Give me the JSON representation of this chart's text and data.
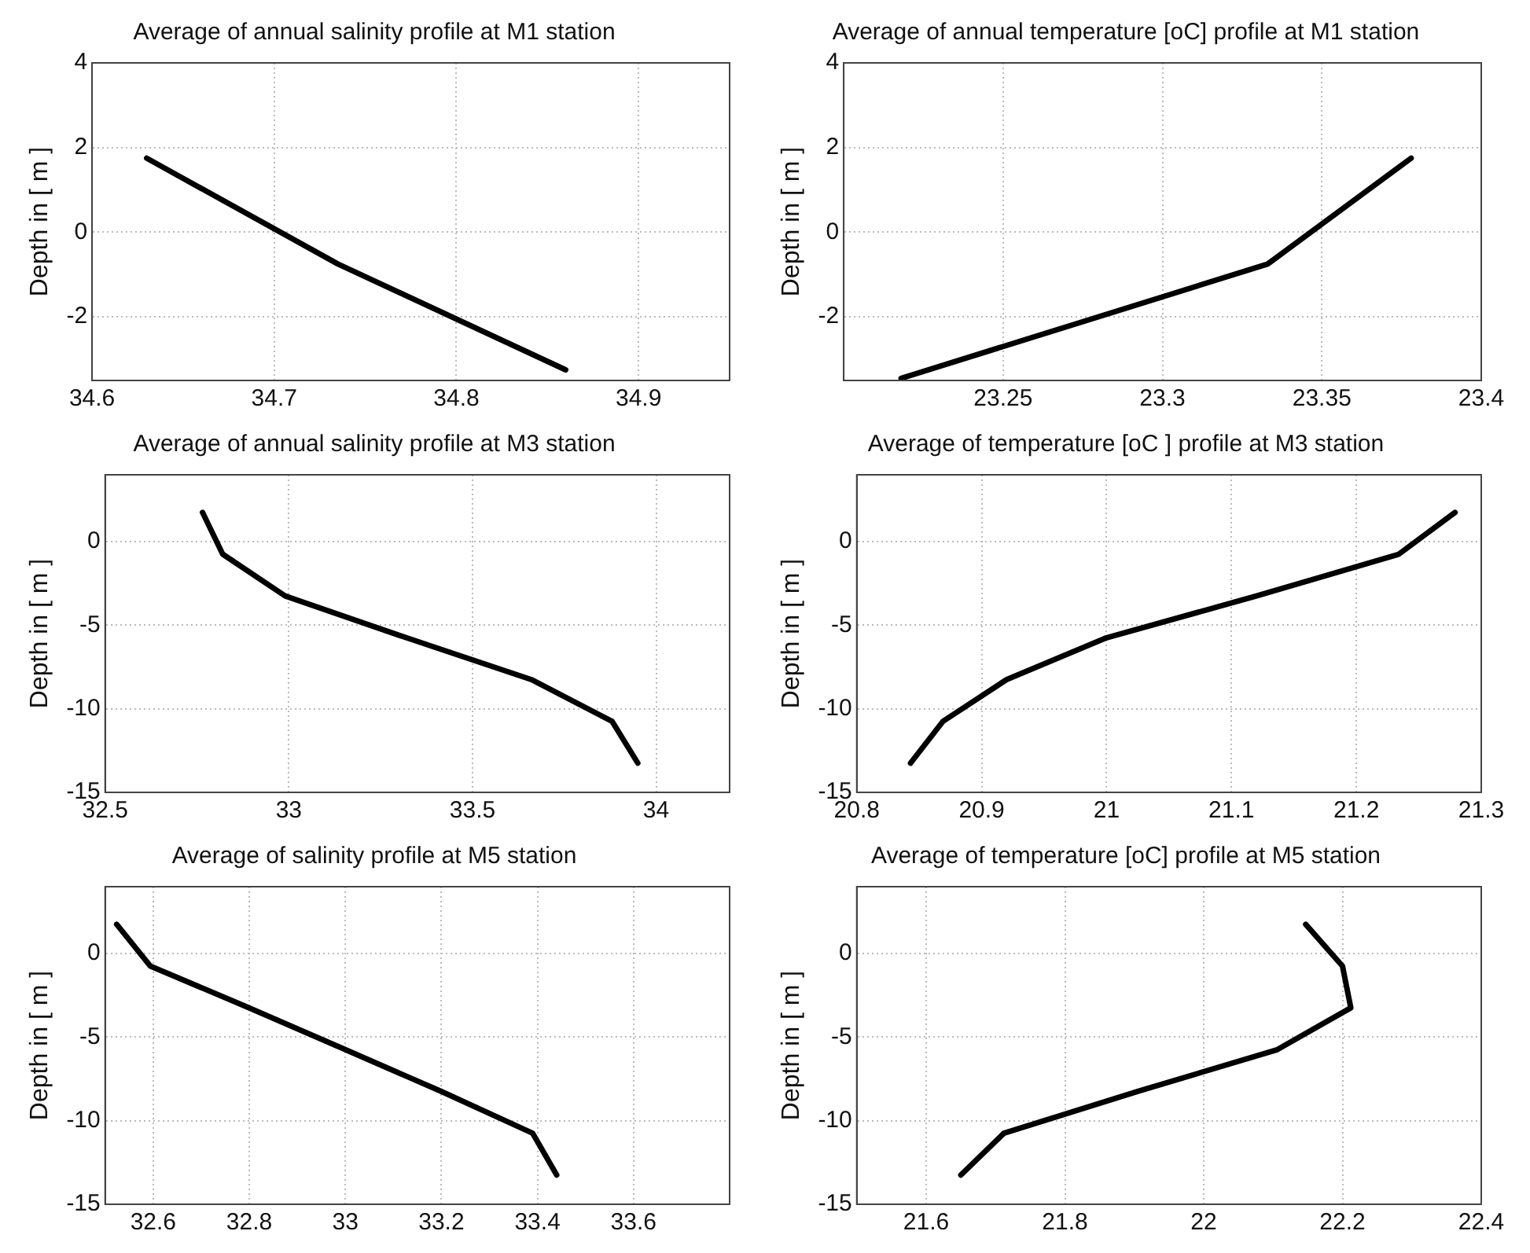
{
  "chart_data": [
    {
      "type": "line",
      "title": "Average of annual salinity profile at M1 station",
      "ylabel": "Depth in [ m ]",
      "x": [
        34.63,
        34.735,
        34.86
      ],
      "values": [
        1.75,
        -0.75,
        -3.25
      ],
      "color": "#000000",
      "xlim": [
        34.6,
        34.95
      ],
      "xticks": [
        34.6,
        34.7,
        34.8,
        34.9
      ],
      "ylim": [
        -3.5,
        4
      ],
      "yticks": [
        -2,
        0,
        2,
        4
      ],
      "grid": true,
      "marker": "none",
      "line_style": "solid"
    },
    {
      "type": "line",
      "title": "Average of annual temperature [oC] profile at M1 station",
      "ylabel": "Depth in [ m ]",
      "x": [
        23.378,
        23.333,
        23.218
      ],
      "values": [
        1.75,
        -0.75,
        -3.45
      ],
      "color": "#000000",
      "xlim": [
        23.2,
        23.4
      ],
      "xticks": [
        23.25,
        23.3,
        23.35,
        23.4
      ],
      "ylim": [
        -3.5,
        4
      ],
      "yticks": [
        -2,
        0,
        2,
        4
      ],
      "grid": true,
      "marker": "none",
      "line_style": "solid"
    },
    {
      "type": "line",
      "title": "Average of annual salinity profile at M3 station",
      "ylabel": "Depth in [ m ]",
      "x": [
        32.765,
        32.82,
        32.99,
        33.32,
        33.66,
        33.88,
        33.95
      ],
      "values": [
        1.75,
        -0.75,
        -3.25,
        -5.75,
        -8.25,
        -10.75,
        -13.25
      ],
      "color": "#000000",
      "xlim": [
        32.5,
        34.2
      ],
      "xticks": [
        32.5,
        33,
        33.5,
        34
      ],
      "ylim": [
        -15,
        4
      ],
      "yticks": [
        -15,
        -10,
        -5,
        0
      ],
      "grid": true,
      "marker": "none",
      "line_style": "solid"
    },
    {
      "type": "line",
      "title": "Average of temperature [oC ] profile at M3 station",
      "ylabel": "Depth in [ m ]",
      "x": [
        21.279,
        21.234,
        21.12,
        21.0,
        20.92,
        20.869,
        20.843
      ],
      "values": [
        1.75,
        -0.75,
        -3.25,
        -5.75,
        -8.25,
        -10.75,
        -13.25
      ],
      "color": "#000000",
      "xlim": [
        20.8,
        21.3
      ],
      "xticks": [
        20.8,
        20.9,
        21,
        21.1,
        21.2,
        21.3
      ],
      "ylim": [
        -15,
        4
      ],
      "yticks": [
        -15,
        -10,
        -5,
        0
      ],
      "grid": true,
      "marker": "none",
      "line_style": "solid"
    },
    {
      "type": "line",
      "title": "Average of salinity profile at M5 station",
      "ylabel": "Depth in [ m ]",
      "x": [
        32.524,
        32.594,
        32.8,
        33.0,
        33.2,
        33.39,
        33.44
      ],
      "values": [
        1.75,
        -0.75,
        -3.25,
        -5.75,
        -8.25,
        -10.75,
        -13.25
      ],
      "color": "#000000",
      "xlim": [
        32.5,
        33.8
      ],
      "xticks": [
        32.6,
        32.8,
        33,
        33.2,
        33.4,
        33.6
      ],
      "ylim": [
        -15,
        4
      ],
      "yticks": [
        -15,
        -10,
        -5,
        0
      ],
      "grid": true,
      "marker": "none",
      "line_style": "solid"
    },
    {
      "type": "line",
      "title": "Average of temperature [oC] profile at M5 station",
      "ylabel": "Depth in [ m ]",
      "x": [
        22.147,
        22.2,
        22.212,
        22.106,
        21.905,
        21.712,
        21.65
      ],
      "values": [
        1.75,
        -0.75,
        -3.25,
        -5.75,
        -8.25,
        -10.75,
        -13.25
      ],
      "color": "#000000",
      "xlim": [
        21.5,
        22.4
      ],
      "xticks": [
        21.6,
        21.8,
        22,
        22.2,
        22.4
      ],
      "ylim": [
        -15,
        4
      ],
      "yticks": [
        -15,
        -10,
        -5,
        0
      ],
      "grid": true,
      "marker": "none",
      "line_style": "solid"
    }
  ]
}
